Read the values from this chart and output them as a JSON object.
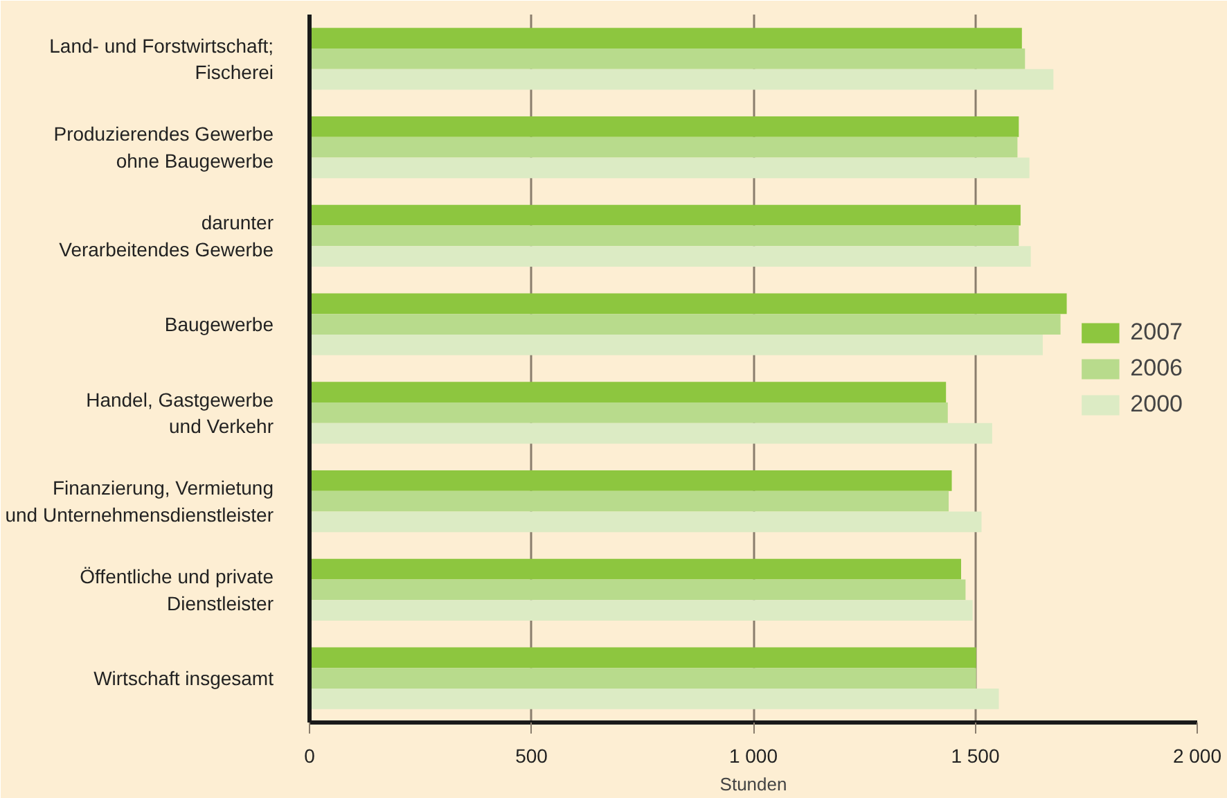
{
  "chart_data": {
    "type": "bar",
    "orientation": "horizontal",
    "xlabel": "Stunden",
    "categories": [
      "Land- und Forstwirtschaft;\nFischerei",
      "Produzierendes Gewerbe\nohne Baugewerbe",
      "darunter\nVerarbeitendes Gewerbe",
      "Baugewerbe",
      "Handel, Gastgewerbe\nund Verkehr",
      "Finanzierung, Vermietung\nund Unternehmensdienstleister",
      "Öffentliche und private\nDienstleister",
      "Wirtschaft insgesamt"
    ],
    "series": [
      {
        "name": "2007",
        "color": "#8dc63f",
        "values": [
          1605,
          1598,
          1602,
          1706,
          1434,
          1447,
          1468,
          1502
        ]
      },
      {
        "name": "2006",
        "color": "#b8db8c",
        "values": [
          1612,
          1595,
          1598,
          1692,
          1438,
          1440,
          1478,
          1502
        ]
      },
      {
        "name": "2000",
        "color": "#dcebc4",
        "values": [
          1676,
          1622,
          1625,
          1652,
          1538,
          1514,
          1494,
          1553
        ]
      }
    ],
    "xlim": [
      0,
      2000
    ],
    "xticks": [
      0,
      500,
      {
        "value": 1000,
        "label": "1 000"
      },
      {
        "value": 1500,
        "label": "1 500"
      },
      {
        "value": 2000,
        "label": "2 000"
      }
    ],
    "grid": "x",
    "legend": "right"
  }
}
